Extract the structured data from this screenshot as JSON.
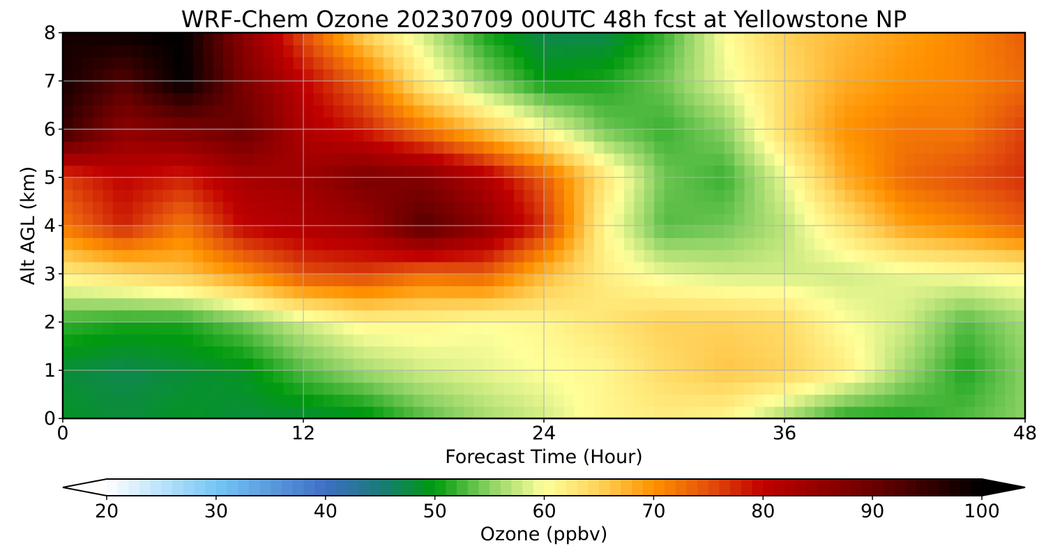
{
  "chart_data": {
    "type": "heatmap",
    "title": "WRF-Chem Ozone  20230709 00UTC 48h fcst at Yellowstone NP",
    "xlabel": "Forecast Time (Hour)",
    "ylabel": "Alt AGL (km)",
    "xlim": [
      0,
      48
    ],
    "ylim": [
      0,
      8
    ],
    "x_ticks": [
      0,
      12,
      24,
      36,
      48
    ],
    "y_ticks": [
      0,
      1,
      2,
      3,
      4,
      5,
      6,
      7,
      8
    ],
    "grid": true,
    "x_hours": [
      0,
      3,
      6,
      9,
      12,
      15,
      18,
      21,
      24,
      27,
      30,
      33,
      36,
      39,
      42,
      45,
      48
    ],
    "y_km": [
      0,
      1,
      2,
      3,
      4,
      5,
      6,
      7,
      8
    ],
    "z_ozone_ppbv": [
      [
        49,
        48,
        49,
        48,
        48,
        49,
        53,
        56,
        58,
        61,
        62,
        61,
        56,
        51,
        51,
        53,
        55
      ],
      [
        48,
        47,
        48,
        49,
        53,
        56,
        58,
        59,
        60,
        61,
        64,
        66,
        65,
        62,
        56,
        51,
        55
      ],
      [
        52,
        51,
        51,
        54,
        58,
        61,
        61,
        60,
        61,
        63,
        65,
        65,
        64,
        60,
        58,
        53,
        56
      ],
      [
        62,
        64,
        66,
        70,
        75,
        76,
        73,
        74,
        67,
        62,
        59,
        58,
        58,
        58,
        59,
        60,
        61
      ],
      [
        72,
        78,
        72,
        80,
        82,
        84,
        92,
        86,
        77,
        61,
        53,
        54,
        57,
        63,
        69,
        71,
        74
      ],
      [
        76,
        80,
        78,
        83,
        84,
        88,
        87,
        82,
        74,
        63,
        54,
        52,
        59,
        68,
        73,
        75,
        77
      ],
      [
        95,
        86,
        88,
        90,
        82,
        78,
        72,
        66,
        60,
        54,
        52,
        55,
        64,
        70,
        72,
        72,
        76
      ],
      [
        98,
        92,
        100,
        88,
        80,
        73,
        62,
        55,
        50,
        51,
        54,
        59,
        64,
        68,
        70,
        71,
        73
      ],
      [
        98,
        99,
        100,
        86,
        75,
        65,
        58,
        51,
        47,
        47,
        52,
        60,
        65,
        67,
        69,
        71,
        74
      ]
    ],
    "colorbar": {
      "label": "Ozone  (ppbv)",
      "ticks": [
        20,
        30,
        40,
        50,
        60,
        70,
        80,
        90,
        100
      ],
      "min": 20,
      "max": 100,
      "extend": "both",
      "color_stops": [
        {
          "value": 20,
          "color": "#ffffff"
        },
        {
          "value": 30,
          "color": "#76c6f5"
        },
        {
          "value": 40,
          "color": "#3f6fc4"
        },
        {
          "value": 45,
          "color": "#1a7a7a"
        },
        {
          "value": 50,
          "color": "#009a0e"
        },
        {
          "value": 55,
          "color": "#8bd164"
        },
        {
          "value": 60,
          "color": "#ffff9a"
        },
        {
          "value": 65,
          "color": "#ffd25a"
        },
        {
          "value": 70,
          "color": "#ff9200"
        },
        {
          "value": 75,
          "color": "#e3500d"
        },
        {
          "value": 80,
          "color": "#c00000"
        },
        {
          "value": 90,
          "color": "#6a0000"
        },
        {
          "value": 100,
          "color": "#000000"
        }
      ]
    }
  }
}
